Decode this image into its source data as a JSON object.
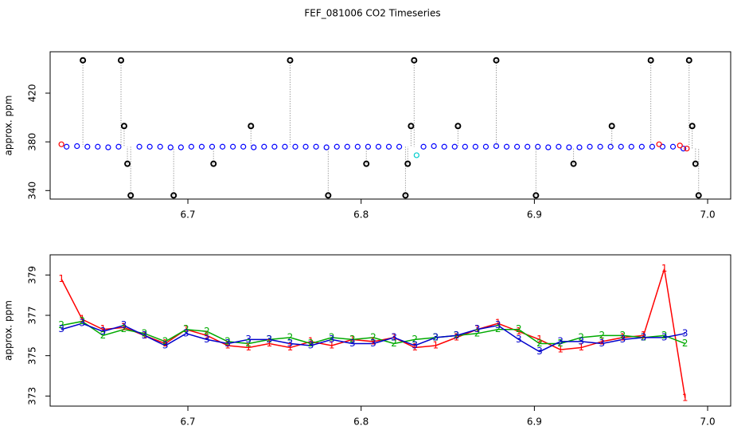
{
  "title": "FEF_081006  CO2 Timeseries",
  "chart_data": [
    {
      "type": "scatter",
      "ylabel": "approx. ppm",
      "xlim": [
        6.6205,
        7.0133
      ],
      "xticks": [
        6.7,
        6.8,
        6.9,
        {
          "value": 7,
          "label": "7.0"
        }
      ],
      "ylim": [
        333,
        454
      ],
      "yticks": [
        340,
        380,
        420
      ],
      "series": [
        {
          "color": "#0000ff",
          "x": [
            6.63,
            6.636,
            6.642,
            6.648,
            6.654,
            6.66,
            6.672,
            6.678,
            6.684,
            6.69,
            6.696,
            6.702,
            6.708,
            6.714,
            6.72,
            6.726,
            6.732,
            6.738,
            6.744,
            6.75,
            6.756,
            6.762,
            6.768,
            6.774,
            6.78,
            6.786,
            6.792,
            6.798,
            6.804,
            6.81,
            6.816,
            6.822,
            6.836,
            6.842,
            6.848,
            6.854,
            6.86,
            6.866,
            6.872,
            6.878,
            6.884,
            6.89,
            6.896,
            6.902,
            6.908,
            6.914,
            6.92,
            6.926,
            6.932,
            6.938,
            6.944,
            6.95,
            6.956,
            6.962,
            6.968,
            6.974,
            6.98,
            6.986
          ],
          "values": [
            376,
            376.5,
            376,
            376,
            375.5,
            376,
            376,
            376,
            376,
            375.5,
            375.5,
            376,
            376,
            376,
            376,
            376,
            376,
            375.5,
            376,
            376,
            376,
            376,
            376,
            376,
            375.5,
            376,
            376,
            376,
            376,
            376,
            376,
            376,
            376,
            376.5,
            376,
            376,
            376,
            376,
            376,
            376.5,
            376,
            376,
            376,
            376,
            375.5,
            376,
            375.5,
            375.5,
            376,
            376,
            376,
            376,
            376,
            376,
            376,
            376,
            376,
            374.5
          ]
        },
        {
          "color": "#ff0000",
          "x": [
            6.627,
            6.972,
            6.984,
            6.988
          ],
          "values": [
            378,
            378,
            377,
            374.5
          ]
        },
        {
          "color": "#00cccc",
          "x": [
            6.832
          ],
          "values": [
            369
          ]
        },
        {
          "color": "#000000",
          "x": [
            6.6394,
            6.6614,
            6.6632,
            6.6651,
            6.667,
            6.6918,
            6.7148,
            6.7364,
            6.759,
            6.781,
            6.803,
            6.8256,
            6.8269,
            6.8288,
            6.8306,
            6.8559,
            6.878,
            6.9009,
            6.9226,
            6.9447,
            6.9672,
            6.9893,
            6.9911,
            6.993,
            6.9948
          ],
          "values": [
            447,
            447,
            393,
            362,
            336,
            336,
            362,
            393,
            447,
            336,
            362,
            336,
            362,
            393,
            447,
            393,
            447,
            336,
            362,
            393,
            447,
            447,
            393,
            362,
            336
          ]
        }
      ]
    },
    {
      "type": "line",
      "ylabel": "approx. ppm",
      "xlim": [
        6.6205,
        7.0133
      ],
      "xticks": [
        6.7,
        6.8,
        6.9,
        {
          "value": 7,
          "label": "7.0"
        }
      ],
      "ylim": [
        372.5,
        380
      ],
      "yticks": [
        373,
        375,
        377,
        379
      ],
      "x": [
        6.627,
        6.639,
        6.651,
        6.663,
        6.675,
        6.687,
        6.699,
        6.711,
        6.723,
        6.735,
        6.747,
        6.759,
        6.771,
        6.783,
        6.795,
        6.807,
        6.819,
        6.831,
        6.843,
        6.855,
        6.867,
        6.879,
        6.891,
        6.903,
        6.915,
        6.927,
        6.939,
        6.951,
        6.963,
        6.975,
        6.987
      ],
      "series": [
        {
          "name": "1",
          "color": "#ff0000",
          "values": [
            378.8,
            376.8,
            376.3,
            376.4,
            376.0,
            375.6,
            376.3,
            376.0,
            375.5,
            375.4,
            375.6,
            375.4,
            375.7,
            375.5,
            375.8,
            375.7,
            375.9,
            375.4,
            375.5,
            375.9,
            376.3,
            376.6,
            376.2,
            375.8,
            375.3,
            375.4,
            375.7,
            375.9,
            376.0,
            379.3,
            372.9
          ]
        },
        {
          "name": "2",
          "color": "#00aa00",
          "values": [
            376.5,
            376.7,
            376.0,
            376.3,
            376.1,
            375.7,
            376.3,
            376.2,
            375.7,
            375.6,
            375.8,
            375.9,
            375.6,
            375.9,
            375.8,
            375.9,
            375.6,
            375.8,
            375.9,
            376.0,
            376.1,
            376.3,
            376.3,
            375.6,
            375.6,
            375.9,
            376.0,
            376.0,
            375.9,
            376.0,
            375.6
          ]
        },
        {
          "name": "3",
          "color": "#0000cc",
          "values": [
            376.3,
            376.6,
            376.2,
            376.5,
            376.0,
            375.5,
            376.1,
            375.8,
            375.6,
            375.8,
            375.8,
            375.6,
            375.5,
            375.8,
            375.6,
            375.6,
            375.9,
            375.5,
            375.9,
            376.0,
            376.3,
            376.5,
            375.8,
            375.2,
            375.7,
            375.7,
            375.6,
            375.8,
            375.9,
            375.9,
            376.1
          ]
        }
      ]
    }
  ]
}
